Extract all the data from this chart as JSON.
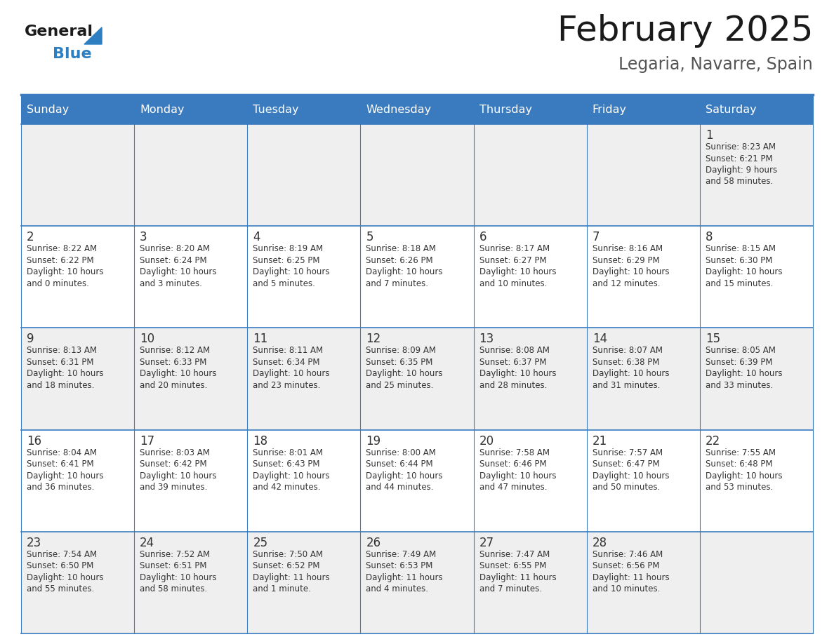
{
  "title": "February 2025",
  "subtitle": "Legaria, Navarre, Spain",
  "days_of_week": [
    "Sunday",
    "Monday",
    "Tuesday",
    "Wednesday",
    "Thursday",
    "Friday",
    "Saturday"
  ],
  "header_bg": "#3a7bbf",
  "header_text": "#ffffff",
  "odd_row_bg": "#efefef",
  "even_row_bg": "#ffffff",
  "border_color": "#3a7bbf",
  "day_number_color": "#333333",
  "info_text_color": "#333333",
  "title_color": "#1a1a1a",
  "subtitle_color": "#555555",
  "logo_general_color": "#1a1a1a",
  "logo_blue_color": "#2e7fc1",
  "weeks": [
    {
      "days": [
        {
          "day": "",
          "info": ""
        },
        {
          "day": "",
          "info": ""
        },
        {
          "day": "",
          "info": ""
        },
        {
          "day": "",
          "info": ""
        },
        {
          "day": "",
          "info": ""
        },
        {
          "day": "",
          "info": ""
        },
        {
          "day": "1",
          "info": "Sunrise: 8:23 AM\nSunset: 6:21 PM\nDaylight: 9 hours\nand 58 minutes."
        }
      ]
    },
    {
      "days": [
        {
          "day": "2",
          "info": "Sunrise: 8:22 AM\nSunset: 6:22 PM\nDaylight: 10 hours\nand 0 minutes."
        },
        {
          "day": "3",
          "info": "Sunrise: 8:20 AM\nSunset: 6:24 PM\nDaylight: 10 hours\nand 3 minutes."
        },
        {
          "day": "4",
          "info": "Sunrise: 8:19 AM\nSunset: 6:25 PM\nDaylight: 10 hours\nand 5 minutes."
        },
        {
          "day": "5",
          "info": "Sunrise: 8:18 AM\nSunset: 6:26 PM\nDaylight: 10 hours\nand 7 minutes."
        },
        {
          "day": "6",
          "info": "Sunrise: 8:17 AM\nSunset: 6:27 PM\nDaylight: 10 hours\nand 10 minutes."
        },
        {
          "day": "7",
          "info": "Sunrise: 8:16 AM\nSunset: 6:29 PM\nDaylight: 10 hours\nand 12 minutes."
        },
        {
          "day": "8",
          "info": "Sunrise: 8:15 AM\nSunset: 6:30 PM\nDaylight: 10 hours\nand 15 minutes."
        }
      ]
    },
    {
      "days": [
        {
          "day": "9",
          "info": "Sunrise: 8:13 AM\nSunset: 6:31 PM\nDaylight: 10 hours\nand 18 minutes."
        },
        {
          "day": "10",
          "info": "Sunrise: 8:12 AM\nSunset: 6:33 PM\nDaylight: 10 hours\nand 20 minutes."
        },
        {
          "day": "11",
          "info": "Sunrise: 8:11 AM\nSunset: 6:34 PM\nDaylight: 10 hours\nand 23 minutes."
        },
        {
          "day": "12",
          "info": "Sunrise: 8:09 AM\nSunset: 6:35 PM\nDaylight: 10 hours\nand 25 minutes."
        },
        {
          "day": "13",
          "info": "Sunrise: 8:08 AM\nSunset: 6:37 PM\nDaylight: 10 hours\nand 28 minutes."
        },
        {
          "day": "14",
          "info": "Sunrise: 8:07 AM\nSunset: 6:38 PM\nDaylight: 10 hours\nand 31 minutes."
        },
        {
          "day": "15",
          "info": "Sunrise: 8:05 AM\nSunset: 6:39 PM\nDaylight: 10 hours\nand 33 minutes."
        }
      ]
    },
    {
      "days": [
        {
          "day": "16",
          "info": "Sunrise: 8:04 AM\nSunset: 6:41 PM\nDaylight: 10 hours\nand 36 minutes."
        },
        {
          "day": "17",
          "info": "Sunrise: 8:03 AM\nSunset: 6:42 PM\nDaylight: 10 hours\nand 39 minutes."
        },
        {
          "day": "18",
          "info": "Sunrise: 8:01 AM\nSunset: 6:43 PM\nDaylight: 10 hours\nand 42 minutes."
        },
        {
          "day": "19",
          "info": "Sunrise: 8:00 AM\nSunset: 6:44 PM\nDaylight: 10 hours\nand 44 minutes."
        },
        {
          "day": "20",
          "info": "Sunrise: 7:58 AM\nSunset: 6:46 PM\nDaylight: 10 hours\nand 47 minutes."
        },
        {
          "day": "21",
          "info": "Sunrise: 7:57 AM\nSunset: 6:47 PM\nDaylight: 10 hours\nand 50 minutes."
        },
        {
          "day": "22",
          "info": "Sunrise: 7:55 AM\nSunset: 6:48 PM\nDaylight: 10 hours\nand 53 minutes."
        }
      ]
    },
    {
      "days": [
        {
          "day": "23",
          "info": "Sunrise: 7:54 AM\nSunset: 6:50 PM\nDaylight: 10 hours\nand 55 minutes."
        },
        {
          "day": "24",
          "info": "Sunrise: 7:52 AM\nSunset: 6:51 PM\nDaylight: 10 hours\nand 58 minutes."
        },
        {
          "day": "25",
          "info": "Sunrise: 7:50 AM\nSunset: 6:52 PM\nDaylight: 11 hours\nand 1 minute."
        },
        {
          "day": "26",
          "info": "Sunrise: 7:49 AM\nSunset: 6:53 PM\nDaylight: 11 hours\nand 4 minutes."
        },
        {
          "day": "27",
          "info": "Sunrise: 7:47 AM\nSunset: 6:55 PM\nDaylight: 11 hours\nand 7 minutes."
        },
        {
          "day": "28",
          "info": "Sunrise: 7:46 AM\nSunset: 6:56 PM\nDaylight: 11 hours\nand 10 minutes."
        },
        {
          "day": "",
          "info": ""
        }
      ]
    }
  ]
}
